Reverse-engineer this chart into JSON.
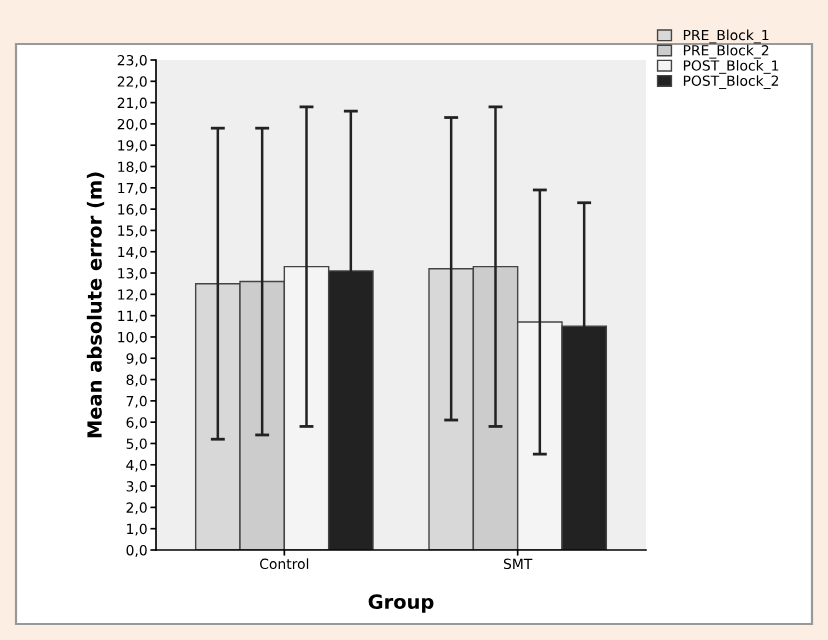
{
  "chart_data": {
    "type": "bar",
    "xlabel": "Group",
    "ylabel": "Mean absolute error (m)",
    "categories": [
      "Control",
      "SMT"
    ],
    "series": [
      {
        "name": "PRE_Block_1",
        "color": "#d8d8d8",
        "values": [
          12.5,
          13.2
        ],
        "errors": [
          7.3,
          7.1
        ]
      },
      {
        "name": "PRE_Block_2",
        "color": "#cccccc",
        "values": [
          12.6,
          13.3
        ],
        "errors": [
          7.2,
          7.5
        ]
      },
      {
        "name": "POST_Block_1",
        "color": "#f4f4f4",
        "values": [
          13.3,
          10.7
        ],
        "errors": [
          7.5,
          6.2
        ]
      },
      {
        "name": "POST_Block_2",
        "color": "#222222",
        "values": [
          13.1,
          10.5
        ],
        "errors": [
          7.5,
          5.8
        ]
      }
    ],
    "ylim": [
      0,
      23
    ],
    "yticks": [
      {
        "value": 0,
        "label": "0,0"
      },
      {
        "value": 1,
        "label": "1,0"
      },
      {
        "value": 2,
        "label": "2,0"
      },
      {
        "value": 3,
        "label": "3,0"
      },
      {
        "value": 4,
        "label": "4,0"
      },
      {
        "value": 5,
        "label": "5,0"
      },
      {
        "value": 6,
        "label": "6,0"
      },
      {
        "value": 7,
        "label": "7,0"
      },
      {
        "value": 8,
        "label": "8,0"
      },
      {
        "value": 9,
        "label": "9,0"
      },
      {
        "value": 10,
        "label": "10,0"
      },
      {
        "value": 11,
        "label": "11,0"
      },
      {
        "value": 12,
        "label": "12,0"
      },
      {
        "value": 13,
        "label": "13,0"
      },
      {
        "value": 14,
        "label": "14,0"
      },
      {
        "value": 15,
        "label": "15,0"
      },
      {
        "value": 16,
        "label": "16,0"
      },
      {
        "value": 17,
        "label": "17,0"
      },
      {
        "value": 18,
        "label": "18,0"
      },
      {
        "value": 19,
        "label": "19,0"
      },
      {
        "value": 20,
        "label": "20,0"
      },
      {
        "value": 21,
        "label": "21,0"
      },
      {
        "value": 22,
        "label": "22,0"
      },
      {
        "value": 23,
        "label": "23,0"
      }
    ],
    "legend": "top right",
    "grid": false
  }
}
